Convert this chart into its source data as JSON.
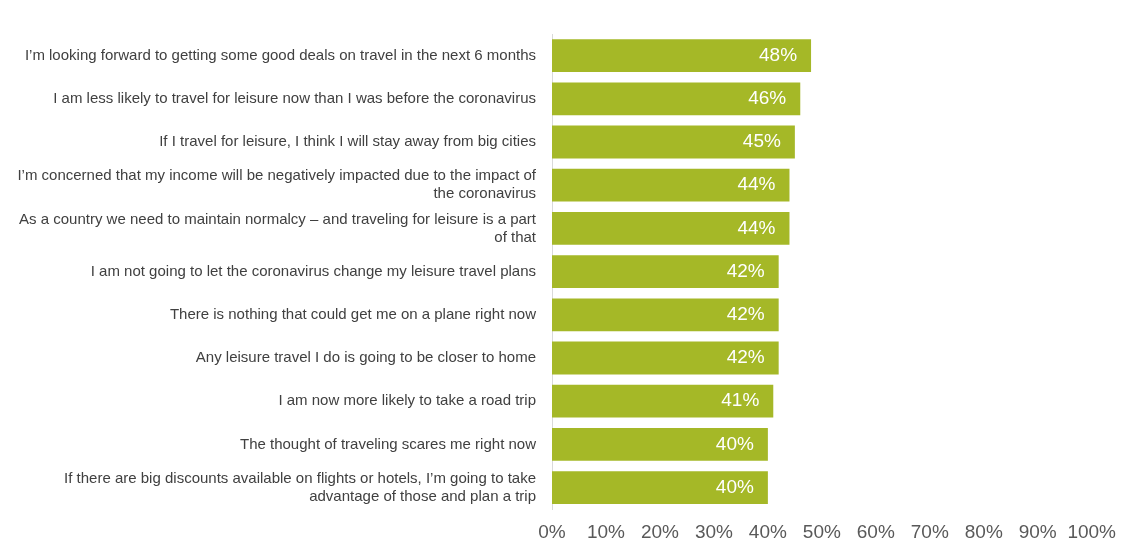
{
  "chart_data": {
    "type": "bar",
    "orientation": "horizontal",
    "categories": [
      "I’m looking forward to getting some good deals on travel in the next 6 months",
      "I am less likely to travel for leisure now than I was before the coronavirus",
      "If I travel for leisure, I think I will stay away from big cities",
      "I’m concerned that my income will be negatively impacted due to the impact of the coronavirus",
      "As a country we need to maintain normalcy – and traveling for leisure is a part of that",
      "I am not going to let the coronavirus change my leisure travel plans",
      "There is nothing that could get me on a plane right now",
      "Any leisure travel I do is going to be closer to home",
      "I am now more likely to take a road trip",
      "The thought of traveling scares me right now",
      "If there are big discounts available on flights or hotels, I’m going to take advantage of those and plan a trip"
    ],
    "values": [
      48,
      46,
      45,
      44,
      44,
      42,
      42,
      42,
      41,
      40,
      40
    ],
    "value_labels": [
      "48%",
      "46%",
      "45%",
      "44%",
      "44%",
      "42%",
      "42%",
      "42%",
      "41%",
      "40%",
      "40%"
    ],
    "color": "#a5b827",
    "xlim": [
      0,
      100
    ],
    "xticks": [
      {
        "value": 0,
        "label": "0%"
      },
      {
        "value": 10,
        "label": "10%"
      },
      {
        "value": 20,
        "label": "20%"
      },
      {
        "value": 30,
        "label": "30%"
      },
      {
        "value": 40,
        "label": "40%"
      },
      {
        "value": 50,
        "label": "50%"
      },
      {
        "value": 60,
        "label": "60%"
      },
      {
        "value": 70,
        "label": "70%"
      },
      {
        "value": 80,
        "label": "80%"
      },
      {
        "value": 90,
        "label": "90%"
      },
      {
        "value": 100,
        "label": "100%"
      }
    ],
    "grid": false,
    "legend": false
  }
}
